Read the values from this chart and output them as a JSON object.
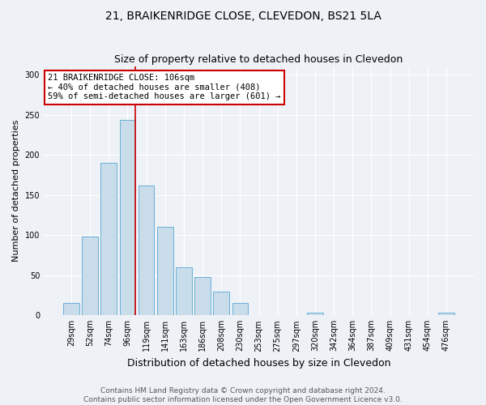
{
  "title": "21, BRAIKENRIDGE CLOSE, CLEVEDON, BS21 5LA",
  "subtitle": "Size of property relative to detached houses in Clevedon",
  "xlabel": "Distribution of detached houses by size in Clevedon",
  "ylabel": "Number of detached properties",
  "categories": [
    "29sqm",
    "52sqm",
    "74sqm",
    "96sqm",
    "119sqm",
    "141sqm",
    "163sqm",
    "186sqm",
    "208sqm",
    "230sqm",
    "253sqm",
    "275sqm",
    "297sqm",
    "320sqm",
    "342sqm",
    "364sqm",
    "387sqm",
    "409sqm",
    "431sqm",
    "454sqm",
    "476sqm"
  ],
  "values": [
    15,
    98,
    190,
    243,
    162,
    110,
    60,
    48,
    30,
    15,
    0,
    0,
    0,
    3,
    0,
    0,
    0,
    0,
    0,
    0,
    3
  ],
  "bar_color": "#c9dcea",
  "bar_edge_color": "#6aafd6",
  "vline_color": "#cc0000",
  "vline_x": 3.43,
  "annotation_text_line1": "21 BRAIKENRIDGE CLOSE: 106sqm",
  "annotation_text_line2": "← 40% of detached houses are smaller (408)",
  "annotation_text_line3": "59% of semi-detached houses are larger (601) →",
  "annotation_box_facecolor": "#ffffff",
  "annotation_box_edgecolor": "#cc0000",
  "background_color": "#eef2f7",
  "plot_background": "#eef2f7",
  "footer_line1": "Contains HM Land Registry data © Crown copyright and database right 2024.",
  "footer_line2": "Contains public sector information licensed under the Open Government Licence v3.0.",
  "ylim": [
    0,
    310
  ],
  "yticks": [
    0,
    50,
    100,
    150,
    200,
    250,
    300
  ],
  "title_fontsize": 10,
  "subtitle_fontsize": 9,
  "xlabel_fontsize": 9,
  "ylabel_fontsize": 8,
  "tick_fontsize": 7,
  "annotation_fontsize": 7.5,
  "footer_fontsize": 6.5
}
